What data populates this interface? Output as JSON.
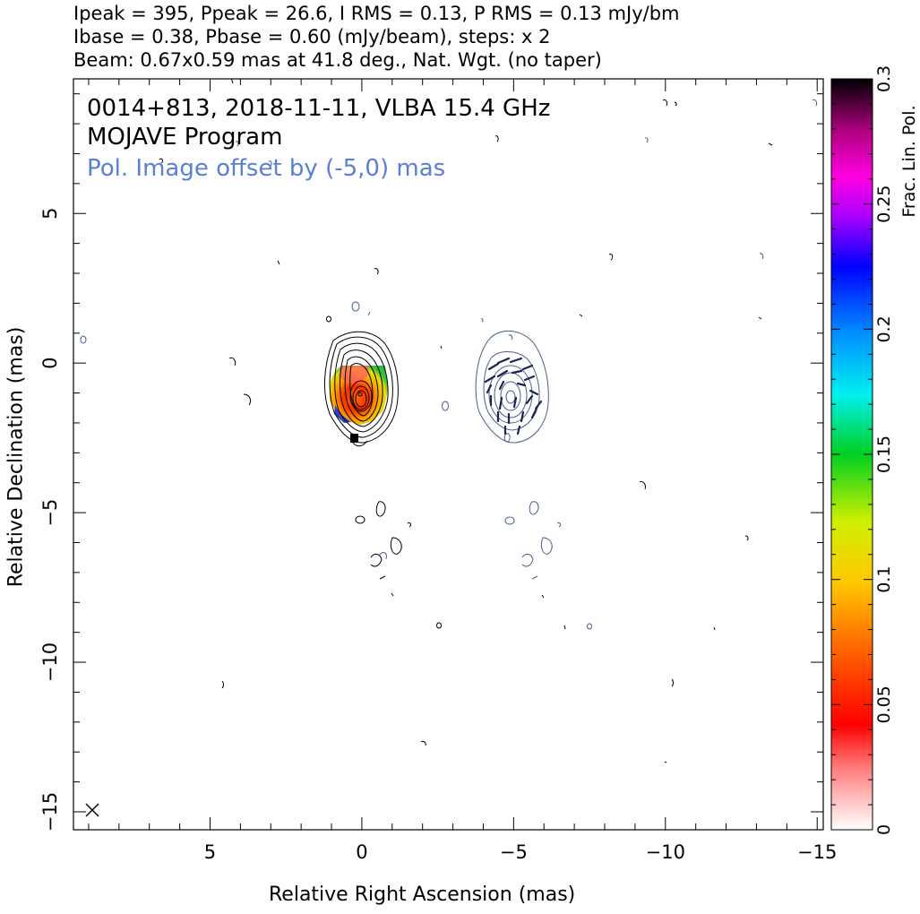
{
  "header": {
    "line1": "Ipeak = 395, Ppeak = 26.6, I RMS = 0.13, P RMS = 0.13 mJy/bm",
    "line2": "Ibase = 0.38, Pbase = 0.60 (mJy/beam), steps: x 2",
    "line3": "Beam: 0.67x0.59 mas at 41.8 deg., Nat. Wgt. (no taper)"
  },
  "annotations": {
    "source": "0014+813, 2018-11-11, VLBA 15.4 GHz",
    "program": "MOJAVE Program",
    "offset_note": "Pol. Image offset by (-5,0) mas"
  },
  "colors": {
    "intensity_contour": "#000000",
    "pol_contour": "#4a5f8f",
    "offset_note": "#5b7fd6",
    "evpa": "#1a2550"
  },
  "chart_data": {
    "type": "contour",
    "xlabel": "Relative Right Ascension (mas)",
    "ylabel": "Relative Declination (mas)",
    "xlim": [
      9.5,
      -15.2
    ],
    "ylim": [
      -15.6,
      9.5
    ],
    "xticks": [
      5,
      0,
      -5,
      -10,
      -15
    ],
    "xtick_labels": [
      "5",
      "0",
      "−5",
      "−10",
      "−15"
    ],
    "yticks": [
      5,
      0,
      -5,
      -10,
      -15
    ],
    "ytick_labels": [
      "5",
      "0",
      "−5",
      "−10",
      "−15"
    ],
    "colorbar": {
      "label": "Frac. Lin. Pol.",
      "range": [
        0,
        0.3
      ],
      "ticks": [
        0,
        0.05,
        0.1,
        0.15,
        0.2,
        0.25,
        0.3
      ],
      "tick_labels": [
        "0",
        "0.05",
        "0.1",
        "0.15",
        "0.2",
        "0.25",
        "0.3"
      ]
    },
    "core": {
      "x": 0.0,
      "y": -1.2
    },
    "pol_offset": {
      "x": -5,
      "y": 0
    },
    "intensity_levels_mJy": [
      0.38,
      0.76,
      1.52,
      3.04,
      6.08,
      12.2,
      24.3,
      48.6,
      97.3,
      195,
      389
    ],
    "pol_levels_mJy": [
      0.6,
      1.2,
      2.4,
      4.8,
      9.6,
      19.2
    ],
    "peaks": {
      "I_peak": 395,
      "P_peak": 26.6
    },
    "beam": {
      "major": 0.67,
      "minor": 0.59,
      "pa": 41.8
    }
  }
}
